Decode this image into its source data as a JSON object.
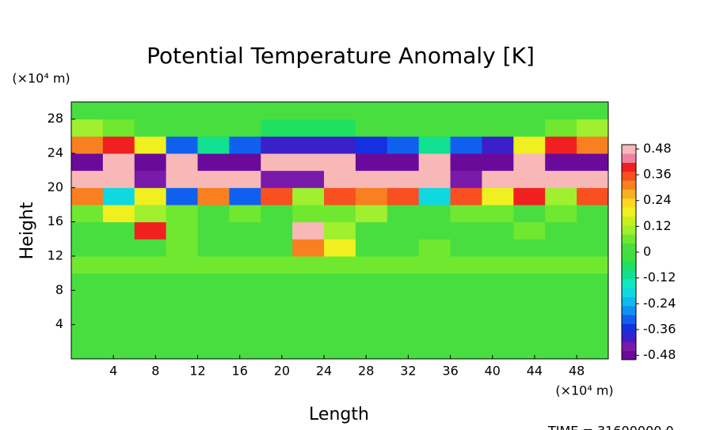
{
  "chart_data": {
    "type": "heatmap",
    "title": "Potential Temperature Anomaly [K]",
    "xlabel": "Length",
    "ylabel": "Height",
    "xunit": "(×10⁴ m)",
    "yunit": "(×10⁴ m)",
    "footer": "TIME = 31600000.0",
    "xlim": [
      0,
      51
    ],
    "ylim": [
      0,
      30
    ],
    "xticks": [
      4,
      8,
      12,
      16,
      20,
      24,
      28,
      32,
      36,
      40,
      44,
      48
    ],
    "yticks": [
      4,
      8,
      12,
      16,
      20,
      24,
      28
    ],
    "x": [
      1.5,
      4.5,
      7.5,
      10.5,
      13.5,
      16.5,
      19.5,
      22.5,
      25.5,
      28.5,
      31.5,
      34.5,
      37.5,
      40.5,
      43.5,
      46.5,
      49.5
    ],
    "y": [
      1,
      3,
      5,
      7,
      9,
      11,
      13,
      15,
      17,
      19,
      21,
      23,
      25,
      27,
      29
    ],
    "z": [
      [
        0,
        0,
        0,
        0,
        0,
        0,
        0,
        0,
        0,
        0,
        0,
        0,
        0,
        0,
        0,
        0,
        0
      ],
      [
        0,
        0,
        0,
        0,
        0,
        0,
        0,
        0,
        0,
        0,
        0,
        0,
        0,
        0,
        0,
        0,
        0
      ],
      [
        0,
        0,
        0,
        0,
        0,
        0,
        0,
        0,
        0,
        0,
        0,
        0,
        0,
        0,
        0,
        0,
        0
      ],
      [
        0,
        0,
        0,
        0,
        0,
        0,
        0,
        0,
        0,
        0,
        0,
        0,
        0,
        0,
        0,
        0,
        0
      ],
      [
        0,
        0,
        0,
        0,
        0,
        0,
        0,
        0,
        0,
        0,
        0,
        0,
        0,
        0,
        0,
        0,
        0
      ],
      [
        0.08,
        0.08,
        0.08,
        0.08,
        0.08,
        0.08,
        0.08,
        0.08,
        0.08,
        0.08,
        0.08,
        0.08,
        0.08,
        0.08,
        0.08,
        0.08,
        0.08
      ],
      [
        0,
        0,
        0,
        0.06,
        0,
        0,
        0,
        0.3,
        0.2,
        0,
        0,
        0.06,
        0,
        0,
        0,
        0,
        0
      ],
      [
        0,
        0,
        0.4,
        0.06,
        0,
        0,
        0,
        0.5,
        0.1,
        0,
        0,
        0,
        0,
        0,
        0.06,
        0,
        0
      ],
      [
        0.06,
        0.2,
        0.1,
        0.06,
        0,
        0.06,
        0,
        0.06,
        0.06,
        0.1,
        0,
        0,
        0.06,
        0.06,
        0,
        0.06,
        0
      ],
      [
        0.3,
        -0.2,
        0.2,
        -0.3,
        0.3,
        -0.3,
        0.35,
        0.1,
        0.35,
        0.3,
        0.35,
        -0.2,
        0.35,
        0.2,
        0.4,
        0.1,
        0.35
      ],
      [
        0.5,
        0.5,
        -0.45,
        0.5,
        0.5,
        0.5,
        -0.45,
        -0.45,
        0.5,
        0.5,
        0.5,
        0.5,
        -0.45,
        0.5,
        0.5,
        0.5,
        0.5
      ],
      [
        -0.5,
        0.5,
        -0.5,
        0.5,
        -0.5,
        -0.5,
        0.5,
        0.5,
        0.5,
        -0.5,
        -0.5,
        0.5,
        -0.5,
        -0.5,
        0.5,
        -0.5,
        -0.5
      ],
      [
        0.3,
        0.4,
        0.2,
        -0.3,
        -0.1,
        -0.3,
        -0.4,
        -0.4,
        -0.4,
        -0.35,
        -0.3,
        -0.1,
        -0.3,
        -0.4,
        0.2,
        0.4,
        0.3
      ],
      [
        0.1,
        0.06,
        0,
        0,
        0,
        0,
        -0.06,
        -0.06,
        -0.06,
        0,
        0,
        0,
        0,
        0,
        0,
        0.06,
        0.1
      ],
      [
        0,
        0,
        0,
        0,
        0,
        0,
        0,
        0,
        0,
        0,
        0,
        0,
        0,
        0,
        0,
        0,
        0
      ]
    ],
    "clim": [
      -0.5,
      0.5
    ],
    "colorbar_ticks": [
      -0.48,
      -0.36,
      -0.24,
      -0.12,
      0,
      0.12,
      0.24,
      0.36,
      0.48
    ],
    "colors": [
      "#6a0a9a",
      "#7a1aaa",
      "#3a20c8",
      "#1530e0",
      "#1060f0",
      "#1090f0",
      "#10b8f0",
      "#10d8e0",
      "#10e8c0",
      "#10e090",
      "#20e060",
      "#3ee03e",
      "#48de40",
      "#70e830",
      "#a0f030",
      "#c8f020",
      "#f0f020",
      "#f8d820",
      "#f8b020",
      "#f88020",
      "#f85020",
      "#f02020",
      "#f080a0",
      "#f8b8b8"
    ]
  }
}
